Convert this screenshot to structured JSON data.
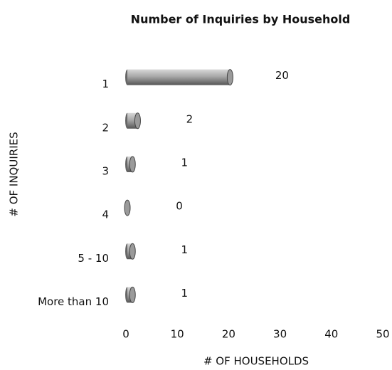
{
  "chart_data": {
    "type": "bar",
    "orientation": "horizontal",
    "title": "Number of Inquiries by Household",
    "x_label": "# OF HOUSEHOLDS",
    "y_label": "# OF INQUIRIES",
    "categories": [
      "1",
      "2",
      "3",
      "4",
      "5 - 10",
      "More than 10"
    ],
    "values": [
      20,
      2,
      1,
      0,
      1,
      1
    ],
    "color": "#9a9a9a",
    "xlim": [
      0,
      50
    ],
    "xticks": [
      0,
      10,
      20,
      30,
      40,
      50
    ],
    "grid": false
  }
}
